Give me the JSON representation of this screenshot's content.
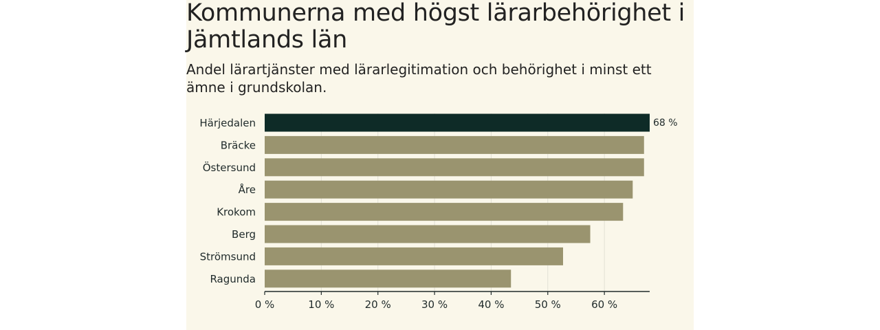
{
  "chart_data": {
    "type": "bar",
    "orientation": "horizontal",
    "title": "Kommunerna med högst lärarbehörighet i Jämtlands län",
    "subtitle": "Andel lärartjänster med lärarlegitimation och behörighet i minst ett ämne i grundskolan.",
    "categories": [
      "Härjedalen",
      "Bräcke",
      "Östersund",
      "Åre",
      "Krokom",
      "Berg",
      "Strömsund",
      "Ragunda"
    ],
    "values": [
      68,
      67,
      67,
      65,
      63.3,
      57.5,
      52.7,
      43.5
    ],
    "highlight_index": 0,
    "data_labels": [
      "68 %",
      "",
      "",
      "",
      "",
      "",
      "",
      ""
    ],
    "xticks": [
      0,
      10,
      20,
      30,
      40,
      50,
      60
    ],
    "xtick_labels": [
      "0 %",
      "10 %",
      "20 %",
      "30 %",
      "40 %",
      "50 %",
      "60 %"
    ],
    "xlim": [
      0,
      68
    ],
    "xlabel": "",
    "ylabel": "",
    "grid": true,
    "colors": {
      "highlight": "#0e2b27",
      "bar": "#9a946f",
      "grid": "#e2e0d4",
      "axis": "#1f2a2a",
      "panel": "#faf7ea"
    }
  }
}
